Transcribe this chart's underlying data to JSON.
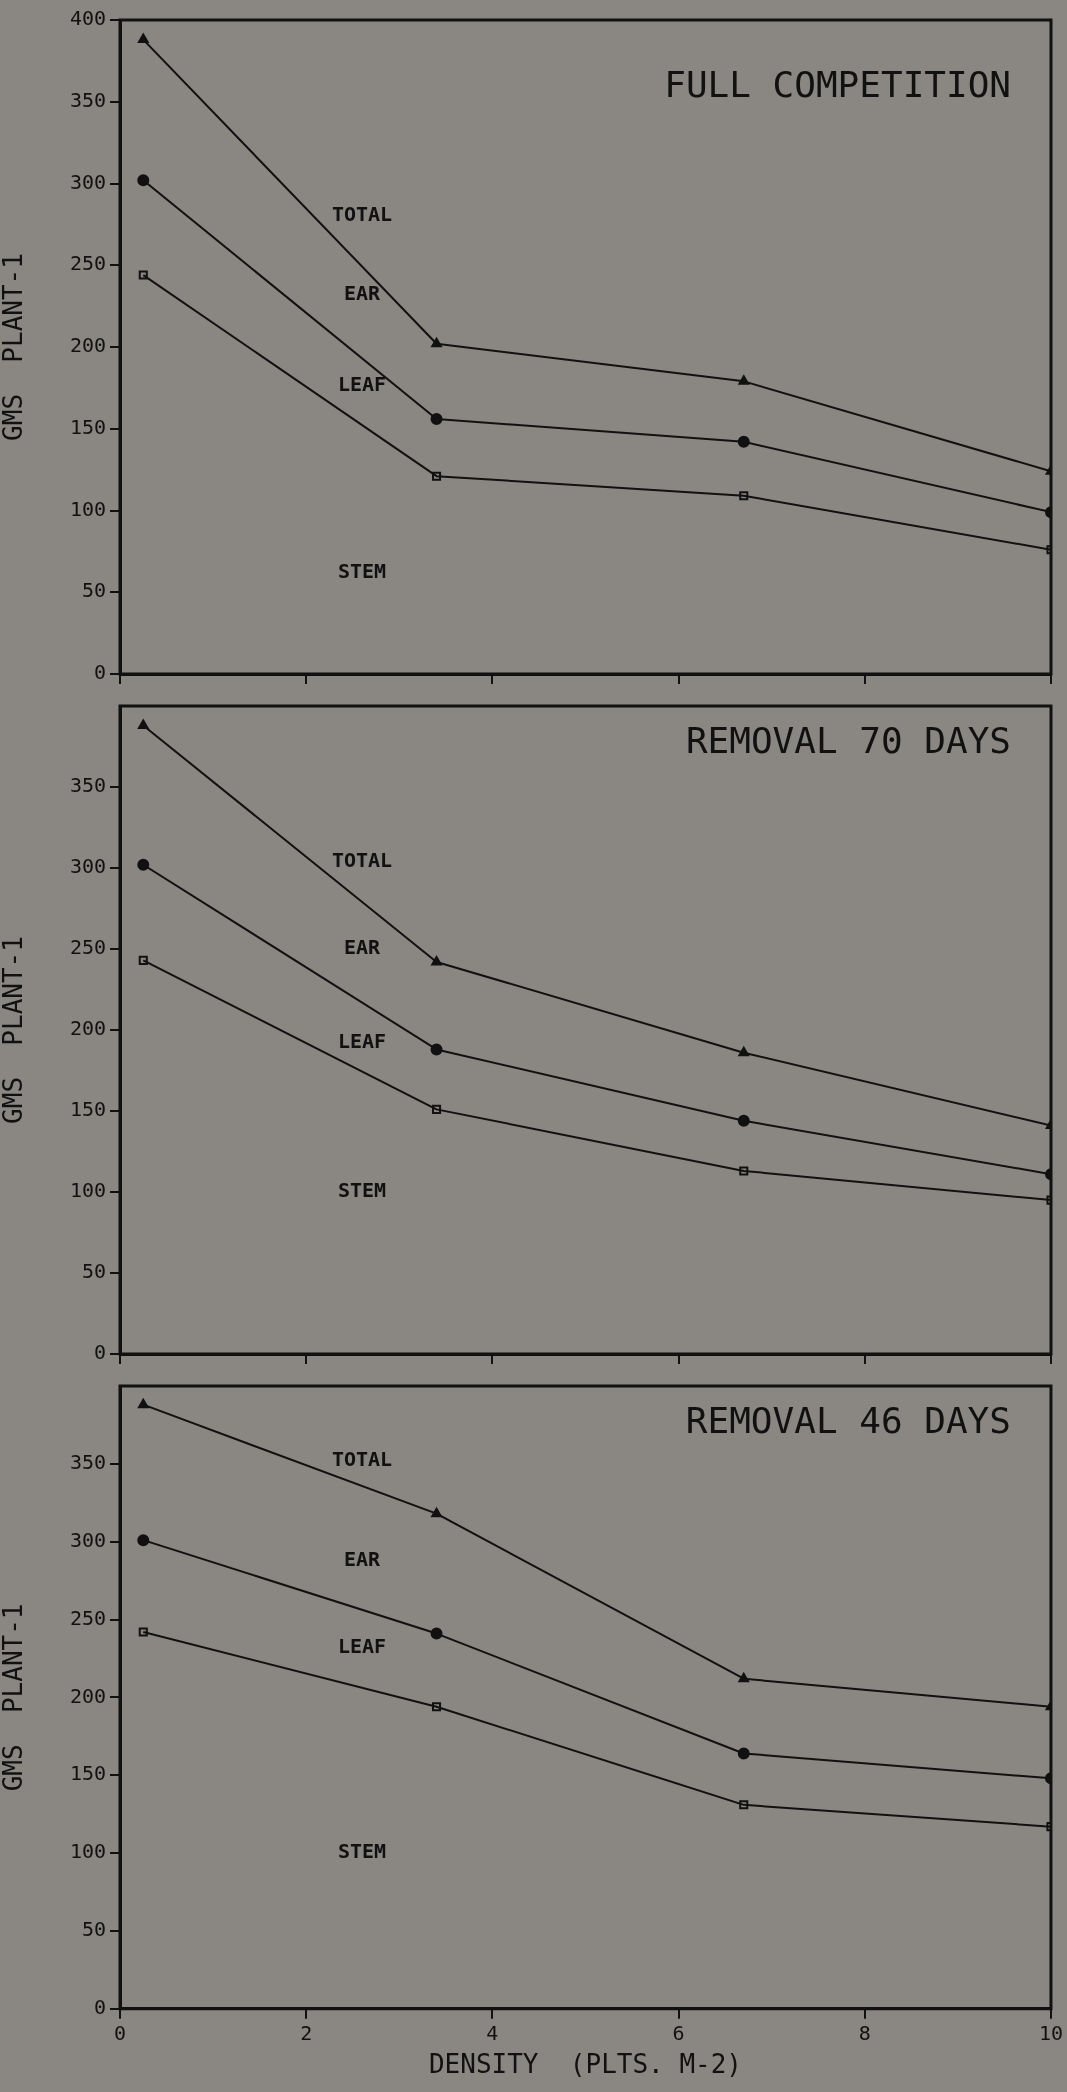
{
  "chart_data": [
    {
      "type": "line",
      "title": "FULL COMPETITION",
      "ylabel": "GMS  PLANT-1",
      "x": [
        0.25,
        3.4,
        6.7,
        10
      ],
      "xlim": [
        0,
        10
      ],
      "xticks": [
        0,
        2,
        4,
        6,
        8,
        10
      ],
      "ylim": [
        0,
        400
      ],
      "yticks": [
        0,
        50,
        100,
        150,
        200,
        250,
        300,
        350,
        400
      ],
      "tick_labels": "y",
      "grid": false,
      "legend": false,
      "series": [
        {
          "color": "#111111",
          "marker": "triangle",
          "values": [
            388,
            202,
            179,
            124
          ]
        },
        {
          "color": "#111111",
          "marker": "circle",
          "values": [
            302,
            156,
            142,
            99
          ]
        },
        {
          "color": "#111111",
          "marker": "square",
          "values": [
            244,
            121,
            109,
            76
          ]
        }
      ],
      "annotations": [
        "TOTAL",
        "EAR",
        "LEAF",
        "STEM"
      ]
    },
    {
      "type": "line",
      "title": "REMOVAL 70 DAYS",
      "ylabel": "GMS  PLANT-1",
      "x": [
        0.25,
        3.4,
        6.7,
        10
      ],
      "xlim": [
        0,
        10
      ],
      "xticks": [
        0,
        2,
        4,
        6,
        8,
        10
      ],
      "ylim": [
        0,
        400
      ],
      "yticks": [
        0,
        50,
        100,
        150,
        200,
        250,
        300,
        350
      ],
      "tick_labels": "y",
      "grid": false,
      "legend": false,
      "series": [
        {
          "color": "#111111",
          "marker": "triangle",
          "values": [
            388,
            242,
            186,
            141
          ]
        },
        {
          "color": "#111111",
          "marker": "circle",
          "values": [
            302,
            188,
            144,
            111
          ]
        },
        {
          "color": "#111111",
          "marker": "square",
          "values": [
            243,
            151,
            113,
            95
          ]
        }
      ],
      "annotations": [
        "TOTAL",
        "EAR",
        "LEAF",
        "STEM"
      ]
    },
    {
      "type": "line",
      "title": "REMOVAL 46 DAYS",
      "ylabel": "GMS  PLANT-1",
      "xlabel": "DENSITY  (PLTS. M-2)",
      "x": [
        0.25,
        3.4,
        6.7,
        10
      ],
      "xlim": [
        0,
        10
      ],
      "xticks": [
        0,
        2,
        4,
        6,
        8,
        10
      ],
      "ylim": [
        0,
        400
      ],
      "yticks": [
        0,
        50,
        100,
        150,
        200,
        250,
        300,
        350
      ],
      "grid": false,
      "legend": false,
      "series": [
        {
          "color": "#111111",
          "marker": "triangle",
          "values": [
            388,
            318,
            212,
            194
          ]
        },
        {
          "color": "#111111",
          "marker": "circle",
          "values": [
            301,
            241,
            164,
            148
          ]
        },
        {
          "color": "#111111",
          "marker": "square",
          "values": [
            242,
            194,
            131,
            117
          ]
        }
      ],
      "annotations": [
        "TOTAL",
        "EAR",
        "LEAF",
        "STEM"
      ]
    }
  ]
}
